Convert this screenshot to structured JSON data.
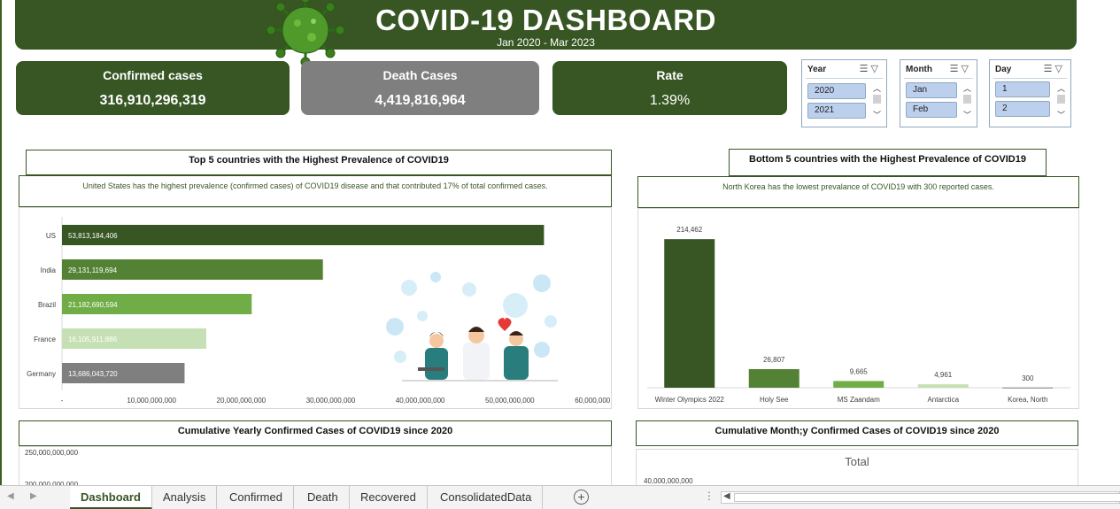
{
  "header": {
    "title": "COVID-19 DASHBOARD",
    "subtitle": "Jan 2020 - Mar 2023"
  },
  "kpis": [
    {
      "label": "Confirmed cases",
      "value": "316,910,296,319",
      "color": "#375623"
    },
    {
      "label": "Death Cases",
      "value": "4,419,816,964",
      "color": "#7f7f7f"
    },
    {
      "label": "Rate",
      "value": "1.39%",
      "color": "#375623"
    }
  ],
  "slicers": [
    {
      "title": "Year",
      "items": [
        "2020",
        "2021"
      ]
    },
    {
      "title": "Month",
      "items": [
        "Jan",
        "Feb"
      ]
    },
    {
      "title": "Day",
      "items": [
        "1",
        "2"
      ]
    }
  ],
  "top5": {
    "title": "Top 5 countries with the Highest Prevalence of COVID19",
    "note": "United States has the highest prevalence (confirmed cases) of COVID19 disease and that contributed 17% of total confirmed cases."
  },
  "bottom5": {
    "title": "Bottom 5 countries with the Highest Prevalence of COVID19",
    "note": "North Korea has the lowest prevalance of COVID19 with 300 reported cases."
  },
  "yearly": {
    "title": "Cumulative Yearly Confirmed Cases of COVID19 since 2020"
  },
  "monthly": {
    "title": "Cumulative Month;y Confirmed Cases of COVID19 since 2020",
    "chart_title": "Total"
  },
  "chart_data": [
    {
      "type": "bar",
      "orientation": "horizontal",
      "categories": [
        "US",
        "India",
        "Brazil",
        "France",
        "Germany"
      ],
      "values": [
        53813184406,
        29131119694,
        21182690594,
        16105911886,
        13686043720
      ],
      "value_labels": [
        "53,813,184,406",
        "29,131,119,694",
        "21,182,690,594",
        "16,105,911,886",
        "13,686,043,720"
      ],
      "colors": [
        "#375623",
        "#548235",
        "#70ad47",
        "#c5e0b4",
        "#7f7f7f"
      ],
      "xlim": [
        0,
        60000000000
      ],
      "xticks": [
        0,
        10000000000,
        20000000000,
        30000000000,
        40000000000,
        50000000000,
        60000000000
      ],
      "xtick_labels": [
        "-",
        "10,000,000,000",
        "20,000,000,000",
        "30,000,000,000",
        "40,000,000,000",
        "50,000,000,000",
        "60,000,000,000"
      ]
    },
    {
      "type": "bar",
      "orientation": "vertical",
      "categories": [
        "Winter Olympics 2022",
        "Holy See",
        "MS Zaandam",
        "Antarctica",
        "Korea, North"
      ],
      "values": [
        214462,
        26807,
        9665,
        4961,
        300
      ],
      "value_labels": [
        "214,462",
        "26,807",
        "9,665",
        "4,961",
        "300"
      ],
      "colors": [
        "#375623",
        "#548235",
        "#70ad47",
        "#c5e0b4",
        "#7f7f7f"
      ],
      "ylim": [
        0,
        230000
      ]
    },
    {
      "type": "line",
      "title": "",
      "ytick_labels": [
        "250,000,000,000",
        "200,000,000,000"
      ]
    },
    {
      "type": "line",
      "title": "Total",
      "ytick_labels": [
        "40,000,000,000"
      ]
    }
  ],
  "tabs": [
    "Dashboard",
    "Analysis",
    "Confirmed",
    "Death",
    "Recovered",
    "ConsolidatedData"
  ],
  "tabbar": {
    "add": "+",
    "more": "⋮"
  }
}
